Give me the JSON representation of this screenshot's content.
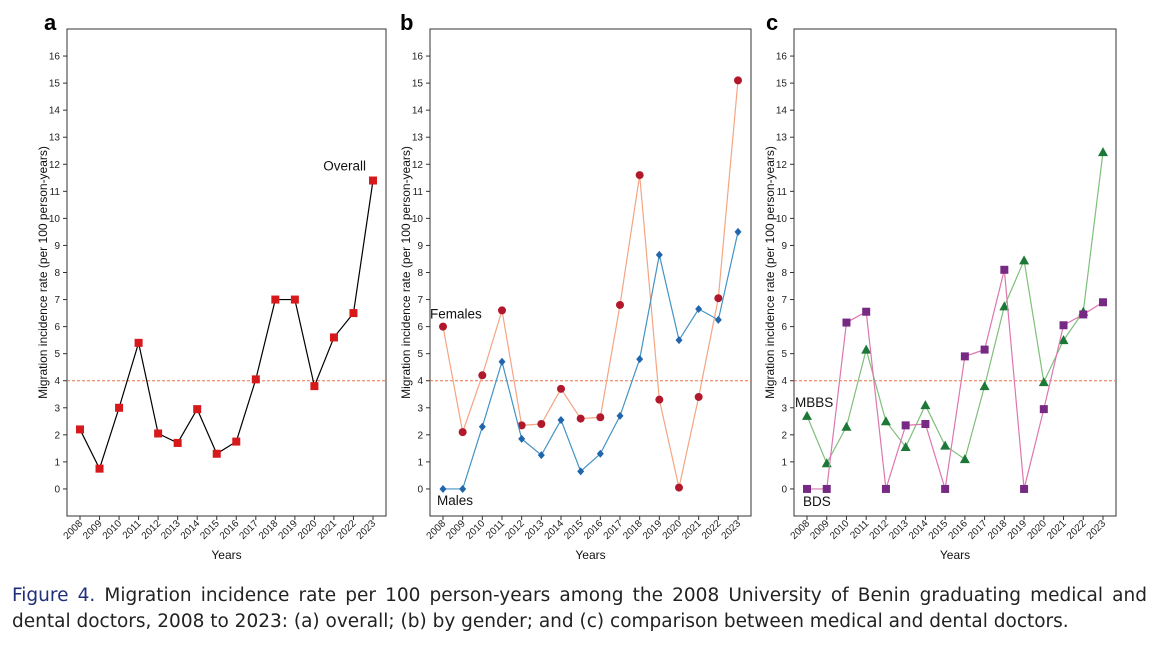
{
  "caption": {
    "label": "Figure 4.",
    "text": "Migration incidence rate per 100 person-years among the 2008 University of Benin graduating medical and dental doctors, 2008 to 2023: (a) overall; (b) by gender; and (c) comparison between medical and dental doctors."
  },
  "colors": {
    "overall": "#d7191c",
    "overall_line": "#000000",
    "females": "#b2182b",
    "females_line": "#f4a582",
    "males": "#2166ac",
    "males_line": "#4393c3",
    "mbbs": "#1b7837",
    "mbbs_line": "#7fbf7b",
    "bds": "#762a83",
    "bds_line": "#de77ae",
    "reference": "#e8734a"
  },
  "chart_data": [
    {
      "panel": "a",
      "type": "line",
      "ylabel": "Migration incidence rate (per 100 person-years)",
      "xlabel": "Years",
      "ylim": [
        -1,
        17
      ],
      "yticks": [
        0,
        1,
        2,
        3,
        4,
        5,
        6,
        7,
        8,
        9,
        10,
        11,
        12,
        13,
        14,
        15,
        16
      ],
      "reference_line": 4,
      "categories": [
        "2008",
        "2009",
        "2010",
        "2011",
        "2012",
        "2013",
        "2014",
        "2015",
        "2016",
        "2017",
        "2018",
        "2019",
        "2020",
        "2021",
        "2022",
        "2023"
      ],
      "series": [
        {
          "name": "Overall",
          "label": "Overall",
          "marker": "square",
          "color_key": "overall",
          "line_key": "overall_line",
          "values": [
            2.2,
            0.75,
            3.0,
            5.4,
            2.05,
            1.7,
            2.95,
            1.3,
            1.75,
            4.05,
            7.0,
            7.0,
            3.8,
            5.6,
            6.5,
            11.4
          ]
        }
      ]
    },
    {
      "panel": "b",
      "type": "line",
      "ylabel": "Migration incidence rate (per 100 person-years)",
      "xlabel": "Years",
      "ylim": [
        -1,
        17
      ],
      "yticks": [
        0,
        1,
        2,
        3,
        4,
        5,
        6,
        7,
        8,
        9,
        10,
        11,
        12,
        13,
        14,
        15,
        16
      ],
      "reference_line": 4,
      "categories": [
        "2008",
        "2009",
        "2010",
        "2011",
        "2012",
        "2013",
        "2014",
        "2015",
        "2016",
        "2017",
        "2018",
        "2019",
        "2020",
        "2021",
        "2022",
        "2023"
      ],
      "series": [
        {
          "name": "Females",
          "label": "Females",
          "marker": "circle",
          "color_key": "females",
          "line_key": "females_line",
          "values": [
            6.0,
            2.1,
            4.2,
            6.6,
            2.35,
            2.4,
            3.7,
            2.6,
            2.65,
            6.8,
            11.6,
            3.3,
            0.05,
            3.4,
            7.05,
            15.1
          ]
        },
        {
          "name": "Males",
          "label": "Males",
          "marker": "diamond",
          "color_key": "males",
          "line_key": "males_line",
          "values": [
            0.0,
            0.0,
            2.3,
            4.7,
            1.85,
            1.25,
            2.55,
            0.65,
            1.3,
            2.7,
            4.8,
            8.65,
            5.5,
            6.65,
            6.25,
            9.5
          ]
        }
      ]
    },
    {
      "panel": "c",
      "type": "line",
      "ylabel": "Migration incidence rate (per 100 person-years)",
      "xlabel": "Years",
      "ylim": [
        -1,
        17
      ],
      "yticks": [
        0,
        1,
        2,
        3,
        4,
        5,
        6,
        7,
        8,
        9,
        10,
        11,
        12,
        13,
        14,
        15,
        16
      ],
      "reference_line": 4,
      "categories": [
        "2008",
        "2009",
        "2010",
        "2011",
        "2012",
        "2013",
        "2014",
        "2015",
        "2016",
        "2017",
        "2018",
        "2019",
        "2020",
        "2021",
        "2022",
        "2023"
      ],
      "series": [
        {
          "name": "MBBS",
          "label": "MBBS",
          "marker": "triangle",
          "color_key": "mbbs",
          "line_key": "mbbs_line",
          "values": [
            2.7,
            0.95,
            2.3,
            5.15,
            2.5,
            1.55,
            3.1,
            1.6,
            1.1,
            3.8,
            6.75,
            8.45,
            3.95,
            5.5,
            6.55,
            12.45
          ]
        },
        {
          "name": "BDS",
          "label": "BDS",
          "marker": "square",
          "color_key": "bds",
          "line_key": "bds_line",
          "values": [
            0.0,
            0.0,
            6.15,
            6.55,
            0.0,
            2.35,
            2.4,
            0.0,
            4.9,
            5.15,
            8.1,
            0.0,
            2.95,
            6.05,
            6.45,
            6.9
          ]
        }
      ]
    }
  ]
}
